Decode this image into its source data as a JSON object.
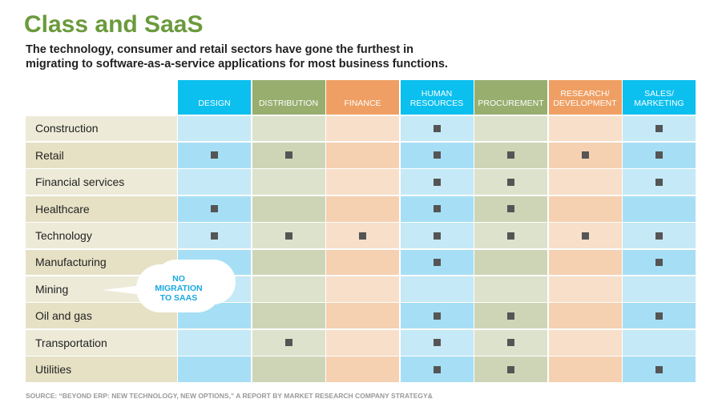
{
  "title": "Class and SaaS",
  "subtitle": "The technology, consumer and retail sectors have gone the furthest in migrating to software-as-a-service applications for most business functions.",
  "callout": "NO MIGRATION TO SAAS",
  "source": "SOURCE: “BEYOND ERP: NEW TECHNOLOGY, NEW OPTIONS,” A REPORT BY MARKET RESEARCH COMPANY STRATEGY&",
  "colors": {
    "blue": {
      "header": "#0bbfee",
      "light": "#c5e9f7",
      "dark": "#a6dff5"
    },
    "green": {
      "header": "#97ae6f",
      "light": "#dde2cc",
      "dark": "#cdd5b6"
    },
    "orange": {
      "header": "#ef9f63",
      "light": "#f8dfc9",
      "dark": "#f5d0b1"
    },
    "label": {
      "light": "#edebd8",
      "dark": "#e6e1c5"
    },
    "mark": "#555555"
  },
  "chart_data": {
    "type": "table",
    "columns": [
      {
        "label": "DESIGN",
        "color": "blue"
      },
      {
        "label": "DISTRIBUTION",
        "color": "green"
      },
      {
        "label": "FINANCE",
        "color": "orange"
      },
      {
        "label": "HUMAN RESOURCES",
        "color": "blue"
      },
      {
        "label": "PROCUREMENT",
        "color": "green"
      },
      {
        "label": "RESEARCH/ DEVELOPMENT",
        "color": "orange"
      },
      {
        "label": "SALES/ MARKETING",
        "color": "blue"
      }
    ],
    "rows": [
      {
        "label": "Construction",
        "values": [
          0,
          0,
          0,
          1,
          0,
          0,
          1
        ]
      },
      {
        "label": "Retail",
        "values": [
          1,
          1,
          0,
          1,
          1,
          1,
          1
        ]
      },
      {
        "label": "Financial services",
        "values": [
          0,
          0,
          0,
          1,
          1,
          0,
          1
        ]
      },
      {
        "label": "Healthcare",
        "values": [
          1,
          0,
          0,
          1,
          1,
          0,
          0
        ]
      },
      {
        "label": "Technology",
        "values": [
          1,
          1,
          1,
          1,
          1,
          1,
          1
        ]
      },
      {
        "label": "Manufacturing",
        "values": [
          0,
          0,
          0,
          1,
          0,
          0,
          1
        ]
      },
      {
        "label": "Mining",
        "values": [
          0,
          0,
          0,
          0,
          0,
          0,
          0
        ]
      },
      {
        "label": "Oil and gas",
        "values": [
          0,
          0,
          0,
          1,
          1,
          0,
          1
        ]
      },
      {
        "label": "Transportation",
        "values": [
          0,
          1,
          0,
          1,
          1,
          0,
          0
        ]
      },
      {
        "label": "Utilities",
        "values": [
          0,
          0,
          0,
          1,
          1,
          0,
          1
        ]
      }
    ]
  }
}
